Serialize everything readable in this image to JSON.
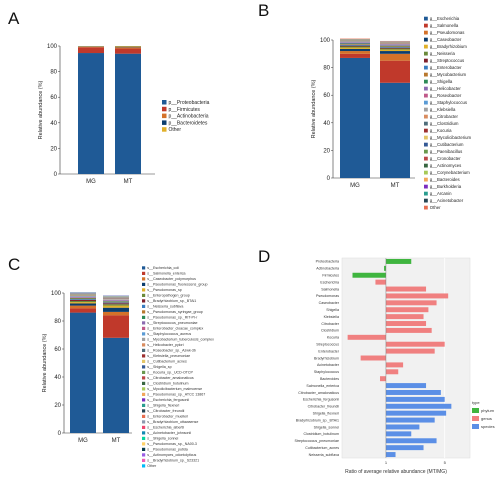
{
  "palette": [
    "#1f5a96",
    "#c0392b",
    "#d4722a",
    "#0b3d6e",
    "#e0b02a",
    "#6b8a3a",
    "#7f1f2a",
    "#3a7dc0",
    "#b8782e",
    "#2e8b57",
    "#8c6bb1",
    "#c05a8a",
    "#5a9bd5",
    "#a0a0a0",
    "#d98c5f",
    "#4f6d7a",
    "#9c2f2f",
    "#e3c567",
    "#345995",
    "#6a994e",
    "#bc4749",
    "#386641",
    "#a7c957",
    "#f2a65a",
    "#7b2cbf",
    "#2a9d8f",
    "#264653",
    "#e76f51",
    "#8d99ae",
    "#ef476f",
    "#118ab2",
    "#06d6a0",
    "#ffd166",
    "#073b4c",
    "#9b5de5",
    "#f15bb5",
    "#00bbf9"
  ],
  "panels": {
    "A": "A",
    "B": "B",
    "C": "C",
    "D": "D"
  },
  "chart_data": [
    {
      "panel": "A",
      "type": "bar",
      "stacked": true,
      "categories": [
        "MG",
        "MT"
      ],
      "ylabel": "Relative abundance (%)",
      "ylim": [
        0,
        100
      ],
      "yticks": [
        0,
        20,
        40,
        60,
        80,
        100
      ],
      "legend_position": "right",
      "series": [
        {
          "name": "p__Proteobacteria",
          "values": [
            94.5,
            94.0
          ]
        },
        {
          "name": "p__Firmicutes",
          "values": [
            4.5,
            4.0
          ]
        },
        {
          "name": "p__Actinobacteria",
          "values": [
            0.4,
            1.0
          ]
        },
        {
          "name": "p__Bacteroidetes",
          "values": [
            0.3,
            0.5
          ]
        },
        {
          "name": "Other",
          "values": [
            0.3,
            0.5
          ]
        }
      ]
    },
    {
      "panel": "B",
      "type": "bar",
      "stacked": true,
      "categories": [
        "MG",
        "MT"
      ],
      "ylabel": "Relative abundance (%)",
      "ylim": [
        0,
        100
      ],
      "yticks": [
        0,
        20,
        40,
        60,
        80,
        100
      ],
      "legend_position": "right",
      "series": [
        {
          "name": "g__Escherichia",
          "values": [
            87.0,
            69.0
          ]
        },
        {
          "name": "g__Salmonella",
          "values": [
            3.0,
            16.0
          ]
        },
        {
          "name": "g__Pseudomonas",
          "values": [
            2.0,
            5.0
          ]
        },
        {
          "name": "g__Caseobacter",
          "values": [
            1.5,
            2.0
          ]
        },
        {
          "name": "g__Bradyrhizobium",
          "values": [
            1.0,
            1.0
          ]
        },
        {
          "name": "g__Neisseria",
          "values": [
            0.8,
            0.8
          ]
        },
        {
          "name": "g__Streptococcus",
          "values": [
            0.6,
            0.6
          ]
        },
        {
          "name": "g__Enterobacter",
          "values": [
            0.6,
            0.5
          ]
        },
        {
          "name": "g__Mycobacterium",
          "values": [
            0.5,
            0.5
          ]
        },
        {
          "name": "g__Shigella",
          "values": [
            0.5,
            0.5
          ]
        },
        {
          "name": "g__Helicobacter",
          "values": [
            0.4,
            0.4
          ]
        },
        {
          "name": "g__Roseobacter",
          "values": [
            0.4,
            0.4
          ]
        },
        {
          "name": "g__Staphylococcus",
          "values": [
            0.3,
            0.3
          ]
        },
        {
          "name": "g__Klebsiella",
          "values": [
            0.3,
            0.3
          ]
        },
        {
          "name": "g__Citrobacter",
          "values": [
            0.2,
            0.2
          ]
        },
        {
          "name": "g__Clostridium",
          "values": [
            0.2,
            0.2
          ]
        },
        {
          "name": "g__Kocuria",
          "values": [
            0.2,
            0.2
          ]
        },
        {
          "name": "g__Mycolicibacterium",
          "values": [
            0.2,
            0.2
          ]
        },
        {
          "name": "g__Cutibacterium",
          "values": [
            0.2,
            0.2
          ]
        },
        {
          "name": "g__Paenibacillus",
          "values": [
            0.1,
            0.1
          ]
        },
        {
          "name": "g__Cronobacter",
          "values": [
            0.1,
            0.1
          ]
        },
        {
          "name": "g__Actinomyces",
          "values": [
            0.1,
            0.1
          ]
        },
        {
          "name": "g__Corynebacterium",
          "values": [
            0.1,
            0.1
          ]
        },
        {
          "name": "g__Bacteroides",
          "values": [
            0.1,
            0.1
          ]
        },
        {
          "name": "g__Burkholderia",
          "values": [
            0.1,
            0.1
          ]
        },
        {
          "name": "g__Arcanin",
          "values": [
            0.1,
            0.1
          ]
        },
        {
          "name": "g__Acinetobacter",
          "values": [
            0.1,
            0.1
          ]
        },
        {
          "name": "Other",
          "values": [
            0.3,
            0.2
          ]
        }
      ]
    },
    {
      "panel": "C",
      "type": "bar",
      "stacked": true,
      "categories": [
        "MG",
        "MT"
      ],
      "ylabel": "Relative abundance (%)",
      "ylim": [
        0,
        100
      ],
      "yticks": [
        0,
        20,
        40,
        60,
        80,
        100
      ],
      "legend_position": "right",
      "series": [
        {
          "name": "s__Escherichia_coli",
          "values": [
            86.0,
            68.0
          ]
        },
        {
          "name": "s__Salmonella_enterica",
          "values": [
            3.0,
            16.0
          ]
        },
        {
          "name": "s__Caseobacter_polymorphus",
          "values": [
            2.0,
            2.5
          ]
        },
        {
          "name": "s__Pseudomonas_fluorescens_group",
          "values": [
            1.5,
            3.0
          ]
        },
        {
          "name": "s__Pseudomonas_sp",
          "values": [
            1.0,
            1.5
          ]
        },
        {
          "name": "s__Enteropathogen_group",
          "values": [
            0.8,
            1.0
          ]
        },
        {
          "name": "s__Bradyrhizobium_sp._BTAi1",
          "values": [
            0.7,
            0.7
          ]
        },
        {
          "name": "s__Neisseria_subflava",
          "values": [
            0.6,
            0.6
          ]
        },
        {
          "name": "s__Pseudomonas_syringae_group",
          "values": [
            0.5,
            0.5
          ]
        },
        {
          "name": "s__Pseudomonas_sp._RIT-PI-r",
          "values": [
            0.4,
            0.4
          ]
        },
        {
          "name": "s__Streptococcus_pneumoniae",
          "values": [
            0.4,
            0.4
          ]
        },
        {
          "name": "s__Enterobacter_cloacae_complex",
          "values": [
            0.3,
            0.3
          ]
        },
        {
          "name": "s__Staphylococcus_aureus",
          "values": [
            0.3,
            0.3
          ]
        },
        {
          "name": "s__Mycobacterium_tuberculosis_complex",
          "values": [
            0.3,
            0.3
          ]
        },
        {
          "name": "s__Helicobacter_pylori",
          "values": [
            0.2,
            0.2
          ]
        },
        {
          "name": "s__Roseobacter_sp._Azwk-3b",
          "values": [
            0.2,
            0.2
          ]
        },
        {
          "name": "s__Klebsiella_pneumoniae",
          "values": [
            0.2,
            0.2
          ]
        },
        {
          "name": "s__Cutibacterium_acnes",
          "values": [
            0.2,
            0.2
          ]
        },
        {
          "name": "s__Shigella_sp",
          "values": [
            0.2,
            0.2
          ]
        },
        {
          "name": "s__Kocuria_sp._UCD-OTCP",
          "values": [
            0.1,
            0.1
          ]
        },
        {
          "name": "s__Citrobacter_amalonaticus",
          "values": [
            0.1,
            0.1
          ]
        },
        {
          "name": "s__Clostridium_botulinum",
          "values": [
            0.1,
            0.1
          ]
        },
        {
          "name": "s__Mycolicibacterium_malmoense",
          "values": [
            0.1,
            0.1
          ]
        },
        {
          "name": "s__Pseudomonas_sp._ATCC 13867",
          "values": [
            0.1,
            0.1
          ]
        },
        {
          "name": "s__Escherichia_fergusonii",
          "values": [
            0.1,
            0.1
          ]
        },
        {
          "name": "s__Shigella_flexneri",
          "values": [
            0.1,
            0.1
          ]
        },
        {
          "name": "s__Citrobacter_freundii",
          "values": [
            0.1,
            0.1
          ]
        },
        {
          "name": "s__Enterobacter_muelleri",
          "values": [
            0.1,
            0.1
          ]
        },
        {
          "name": "s__Bradyrhizobium_ottawaense",
          "values": [
            0.1,
            0.1
          ]
        },
        {
          "name": "s__Escherichia_albertii",
          "values": [
            0.1,
            0.1
          ]
        },
        {
          "name": "s__Acinetobacter_johnsonii",
          "values": [
            0.1,
            0.1
          ]
        },
        {
          "name": "s__Shigella_sonnei",
          "values": [
            0.1,
            0.1
          ]
        },
        {
          "name": "s__Pseudomonas_sp._NA00-3",
          "values": [
            0.1,
            0.1
          ]
        },
        {
          "name": "s__Pseudomonas_putida",
          "values": [
            0.1,
            0.1
          ]
        },
        {
          "name": "s__Actinomyces_odontolyticus",
          "values": [
            0.1,
            0.1
          ]
        },
        {
          "name": "s__Bradyrhizobium_sp._S23321",
          "values": [
            0.1,
            0.1
          ]
        },
        {
          "name": "Other",
          "values": [
            0.1,
            0.1
          ]
        }
      ]
    },
    {
      "panel": "D",
      "type": "bar",
      "orientation": "horizontal",
      "xlabel": "Ratio of average relative abundance (MT/MG)",
      "xscale": "log",
      "xlim": [
        0.3,
        10
      ],
      "xticks": [
        1,
        5
      ],
      "reference_line": 1,
      "legend_title": "type",
      "legend_position": "right",
      "legend": [
        {
          "name": "phylum",
          "color": "#3fb53f"
        },
        {
          "name": "genus",
          "color": "#f08080"
        },
        {
          "name": "species",
          "color": "#5b8fe6"
        }
      ],
      "categories": [
        "Proteobacteria",
        "Actinobacteria",
        "Firmicutes",
        "Escherichia",
        "Salmonella",
        "Pseudomonas",
        "Caseobacter",
        "Shigella",
        "Klebsiella",
        "Citrobacter",
        "Clostridium",
        "Kocuria",
        "Streptococcus",
        "Enterobacter",
        "Bradyrhizobium",
        "Acinetobacter",
        "Staphylococcus",
        "Bacteroides",
        "Salmonella_enterica",
        "Citrobacter_amalonaticus",
        "Escherichia_fergusonii",
        "Citrobacter_freundii",
        "Shigella_flexneri",
        "Bradyrhizobium_sp._BTAi1",
        "Shigella_sonnei",
        "Clostridium_botulinum",
        "Streptococcus_pneumoniae",
        "Cutibacterium_acnes",
        "Neisseria_subflava"
      ],
      "types": [
        "phylum",
        "phylum",
        "phylum",
        "genus",
        "genus",
        "genus",
        "genus",
        "genus",
        "genus",
        "genus",
        "genus",
        "genus",
        "genus",
        "genus",
        "genus",
        "genus",
        "genus",
        "genus",
        "species",
        "species",
        "species",
        "species",
        "species",
        "species",
        "species",
        "species",
        "species",
        "species",
        "species"
      ],
      "values": [
        2.0,
        0.95,
        0.4,
        0.75,
        3.0,
        5.5,
        4.0,
        3.2,
        2.8,
        3.0,
        3.5,
        0.35,
        5.0,
        3.8,
        0.5,
        1.6,
        1.4,
        0.85,
        3.0,
        4.5,
        5.0,
        6.0,
        5.2,
        3.8,
        2.5,
        2.0,
        4.0,
        2.8,
        1.3
      ]
    }
  ]
}
